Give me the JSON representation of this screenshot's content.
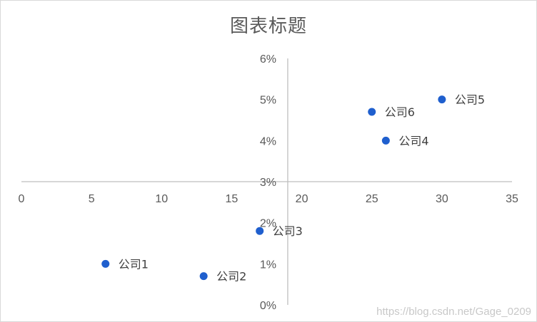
{
  "chart_data": {
    "type": "scatter",
    "title": "图表标题",
    "xlabel": "",
    "ylabel": "",
    "xlim": [
      0,
      35
    ],
    "ylim": [
      0,
      0.06
    ],
    "x_ticks": [
      "0",
      "5",
      "10",
      "15",
      "20",
      "25",
      "30",
      "35"
    ],
    "y_ticks": [
      "0%",
      "1%",
      "2%",
      "3%",
      "4%",
      "5%",
      "6%"
    ],
    "axis_cross": {
      "x": 19,
      "y": 0.03
    },
    "grid": false,
    "legend": "none",
    "marker_color": "#1f5fce",
    "points": [
      {
        "label": "公司1",
        "x": 6,
        "y": 0.01
      },
      {
        "label": "公司2",
        "x": 13,
        "y": 0.007
      },
      {
        "label": "公司3",
        "x": 17,
        "y": 0.018
      },
      {
        "label": "公司4",
        "x": 26,
        "y": 0.04
      },
      {
        "label": "公司5",
        "x": 30,
        "y": 0.05
      },
      {
        "label": "公司6",
        "x": 25,
        "y": 0.047
      }
    ]
  },
  "watermark": "https://blog.csdn.net/Gage_0209"
}
